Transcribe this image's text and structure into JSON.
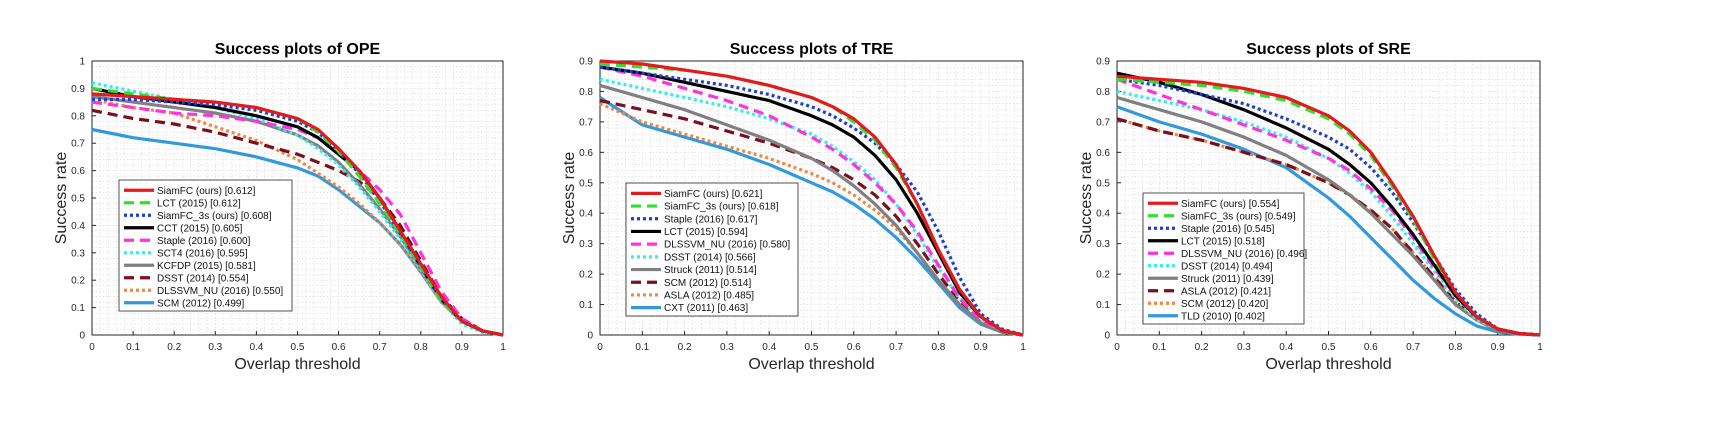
{
  "chart_data": [
    {
      "type": "line",
      "title": "Success plots of OPE",
      "xlabel": "Overlap threshold",
      "ylabel": "Success rate",
      "xlim": [
        0,
        1
      ],
      "ylim": [
        0,
        1
      ],
      "xticks": [
        "0",
        "0.1",
        "0.2",
        "0.3",
        "0.4",
        "0.5",
        "0.6",
        "0.7",
        "0.8",
        "0.9",
        "1"
      ],
      "yticks": [
        "0",
        "0.1",
        "0.2",
        "0.3",
        "0.4",
        "0.5",
        "0.6",
        "0.7",
        "0.8",
        "0.9",
        "1"
      ],
      "grid": true,
      "legend_position": "bottom-left",
      "x": [
        0,
        0.1,
        0.2,
        0.3,
        0.4,
        0.5,
        0.55,
        0.6,
        0.65,
        0.7,
        0.75,
        0.8,
        0.85,
        0.9,
        0.95,
        1
      ],
      "series": [
        {
          "name": "SiamFC (ours) [0.612]",
          "color": "#e41a1c",
          "dash": "solid",
          "values": [
            0.88,
            0.87,
            0.86,
            0.85,
            0.83,
            0.79,
            0.75,
            0.68,
            0.6,
            0.5,
            0.38,
            0.26,
            0.14,
            0.05,
            0.015,
            0
          ]
        },
        {
          "name": "LCT (2015) [0.612]",
          "color": "#33dd33",
          "dash": "dashed",
          "values": [
            0.9,
            0.88,
            0.86,
            0.85,
            0.83,
            0.79,
            0.74,
            0.67,
            0.58,
            0.48,
            0.37,
            0.25,
            0.13,
            0.05,
            0.015,
            0
          ]
        },
        {
          "name": "SiamFC_3s (ours) [0.608]",
          "color": "#1f3fd1",
          "dash": "dotted",
          "values": [
            0.86,
            0.86,
            0.85,
            0.84,
            0.82,
            0.78,
            0.74,
            0.67,
            0.59,
            0.49,
            0.37,
            0.25,
            0.13,
            0.05,
            0.015,
            0
          ]
        },
        {
          "name": "CCT (2015) [0.605]",
          "color": "#000000",
          "dash": "solid",
          "values": [
            0.9,
            0.87,
            0.85,
            0.83,
            0.8,
            0.76,
            0.72,
            0.66,
            0.6,
            0.5,
            0.38,
            0.25,
            0.13,
            0.05,
            0.015,
            0
          ]
        },
        {
          "name": "Staple (2016) [0.600]",
          "color": "#ff33dd",
          "dash": "dashed",
          "values": [
            0.85,
            0.83,
            0.81,
            0.8,
            0.78,
            0.75,
            0.72,
            0.66,
            0.6,
            0.53,
            0.44,
            0.3,
            0.16,
            0.06,
            0.015,
            0
          ]
        },
        {
          "name": "SCT4 (2016) [0.595]",
          "color": "#33eeee",
          "dash": "dotted",
          "values": [
            0.92,
            0.89,
            0.86,
            0.83,
            0.79,
            0.73,
            0.68,
            0.62,
            0.54,
            0.45,
            0.35,
            0.24,
            0.12,
            0.04,
            0.01,
            0
          ]
        },
        {
          "name": "KCFDP (2015) [0.581]",
          "color": "#808080",
          "dash": "solid",
          "values": [
            0.87,
            0.85,
            0.83,
            0.81,
            0.78,
            0.73,
            0.69,
            0.63,
            0.55,
            0.46,
            0.36,
            0.24,
            0.13,
            0.05,
            0.015,
            0
          ]
        },
        {
          "name": "DSST (2014) [0.554]",
          "color": "#7a0f1e",
          "dash": "dashed",
          "values": [
            0.82,
            0.79,
            0.77,
            0.74,
            0.7,
            0.66,
            0.63,
            0.6,
            0.56,
            0.5,
            0.4,
            0.27,
            0.14,
            0.06,
            0.015,
            0
          ]
        },
        {
          "name": "DLSSVM_NU (2016) [0.550]",
          "color": "#ee8844",
          "dash": "dotted",
          "values": [
            0.86,
            0.83,
            0.81,
            0.76,
            0.71,
            0.64,
            0.59,
            0.54,
            0.48,
            0.41,
            0.33,
            0.23,
            0.12,
            0.05,
            0.015,
            0
          ]
        },
        {
          "name": "SCM (2012) [0.499]",
          "color": "#3399dd",
          "dash": "solid",
          "values": [
            0.75,
            0.72,
            0.7,
            0.68,
            0.65,
            0.61,
            0.58,
            0.53,
            0.47,
            0.41,
            0.33,
            0.23,
            0.12,
            0.05,
            0.015,
            0
          ]
        }
      ]
    },
    {
      "type": "line",
      "title": "Success plots of TRE",
      "xlabel": "Overlap threshold",
      "ylabel": "Success rate",
      "xlim": [
        0,
        1
      ],
      "ylim": [
        0,
        0.9
      ],
      "xticks": [
        "0",
        "0.1",
        "0.2",
        "0.3",
        "0.4",
        "0.5",
        "0.6",
        "0.7",
        "0.8",
        "0.9",
        "1"
      ],
      "yticks": [
        "0",
        "0.1",
        "0.2",
        "0.3",
        "0.4",
        "0.5",
        "0.6",
        "0.7",
        "0.8",
        "0.9"
      ],
      "grid": true,
      "legend_position": "bottom-left",
      "x": [
        0,
        0.1,
        0.2,
        0.3,
        0.4,
        0.5,
        0.55,
        0.6,
        0.65,
        0.7,
        0.75,
        0.8,
        0.85,
        0.9,
        0.95,
        1
      ],
      "series": [
        {
          "name": "SiamFC (ours) [0.621]",
          "color": "#e41a1c",
          "dash": "solid",
          "values": [
            0.9,
            0.89,
            0.87,
            0.85,
            0.82,
            0.78,
            0.75,
            0.71,
            0.65,
            0.56,
            0.43,
            0.28,
            0.15,
            0.06,
            0.015,
            0
          ]
        },
        {
          "name": "SiamFC_3s (ours) [0.618]",
          "color": "#33dd33",
          "dash": "dashed",
          "values": [
            0.89,
            0.88,
            0.87,
            0.85,
            0.82,
            0.78,
            0.75,
            0.7,
            0.64,
            0.55,
            0.43,
            0.28,
            0.15,
            0.06,
            0.015,
            0
          ]
        },
        {
          "name": "Staple (2016) [0.617]",
          "color": "#1f3fd1",
          "dash": "dotted",
          "values": [
            0.88,
            0.86,
            0.84,
            0.82,
            0.79,
            0.75,
            0.72,
            0.68,
            0.63,
            0.56,
            0.47,
            0.34,
            0.19,
            0.07,
            0.02,
            0
          ]
        },
        {
          "name": "LCT (2015) [0.594]",
          "color": "#000000",
          "dash": "solid",
          "values": [
            0.88,
            0.86,
            0.83,
            0.8,
            0.77,
            0.72,
            0.69,
            0.65,
            0.59,
            0.51,
            0.4,
            0.27,
            0.14,
            0.06,
            0.015,
            0
          ]
        },
        {
          "name": "DLSSVM_NU (2016) [0.580]",
          "color": "#ff33dd",
          "dash": "dashed",
          "values": [
            0.88,
            0.85,
            0.81,
            0.77,
            0.72,
            0.65,
            0.61,
            0.56,
            0.5,
            0.43,
            0.34,
            0.23,
            0.12,
            0.05,
            0.015,
            0
          ]
        },
        {
          "name": "DSST (2014) [0.566]",
          "color": "#33eeee",
          "dash": "dotted",
          "values": [
            0.84,
            0.81,
            0.78,
            0.75,
            0.71,
            0.66,
            0.62,
            0.57,
            0.51,
            0.43,
            0.33,
            0.22,
            0.12,
            0.05,
            0.015,
            0
          ]
        },
        {
          "name": "Struck (2011) [0.514]",
          "color": "#808080",
          "dash": "solid",
          "values": [
            0.82,
            0.78,
            0.74,
            0.69,
            0.64,
            0.58,
            0.54,
            0.49,
            0.43,
            0.36,
            0.27,
            0.18,
            0.1,
            0.04,
            0.01,
            0
          ]
        },
        {
          "name": "SCM (2012) [0.514]",
          "color": "#7a0f1e",
          "dash": "dashed",
          "values": [
            0.77,
            0.74,
            0.71,
            0.67,
            0.63,
            0.58,
            0.55,
            0.51,
            0.46,
            0.39,
            0.3,
            0.2,
            0.11,
            0.04,
            0.01,
            0
          ]
        },
        {
          "name": "ASLA (2012) [0.485]",
          "color": "#ee8844",
          "dash": "dotted",
          "values": [
            0.76,
            0.7,
            0.66,
            0.62,
            0.58,
            0.53,
            0.5,
            0.46,
            0.41,
            0.35,
            0.27,
            0.18,
            0.1,
            0.04,
            0.01,
            0
          ]
        },
        {
          "name": "CXT (2011) [0.463]",
          "color": "#3399dd",
          "dash": "solid",
          "values": [
            0.78,
            0.69,
            0.65,
            0.61,
            0.56,
            0.5,
            0.47,
            0.43,
            0.38,
            0.32,
            0.25,
            0.17,
            0.09,
            0.035,
            0.01,
            0
          ]
        }
      ]
    },
    {
      "type": "line",
      "title": "Success plots of SRE",
      "xlabel": "Overlap threshold",
      "ylabel": "Success rate",
      "xlim": [
        0,
        1
      ],
      "ylim": [
        0,
        0.9
      ],
      "xticks": [
        "0",
        "0.1",
        "0.2",
        "0.3",
        "0.4",
        "0.5",
        "0.6",
        "0.7",
        "0.8",
        "0.9",
        "1"
      ],
      "yticks": [
        "0",
        "0.1",
        "0.2",
        "0.3",
        "0.4",
        "0.5",
        "0.6",
        "0.7",
        "0.8",
        "0.9"
      ],
      "grid": true,
      "legend_position": "bottom-left",
      "x": [
        0,
        0.1,
        0.2,
        0.3,
        0.4,
        0.5,
        0.55,
        0.6,
        0.65,
        0.7,
        0.75,
        0.8,
        0.85,
        0.9,
        0.95,
        1
      ],
      "series": [
        {
          "name": "SiamFC (ours) [0.554]",
          "color": "#e41a1c",
          "dash": "solid",
          "values": [
            0.85,
            0.84,
            0.83,
            0.81,
            0.78,
            0.72,
            0.67,
            0.6,
            0.5,
            0.39,
            0.26,
            0.14,
            0.06,
            0.02,
            0.005,
            0
          ]
        },
        {
          "name": "SiamFC_3s (ours) [0.549]",
          "color": "#33dd33",
          "dash": "dashed",
          "values": [
            0.84,
            0.83,
            0.82,
            0.8,
            0.77,
            0.71,
            0.66,
            0.59,
            0.49,
            0.38,
            0.25,
            0.14,
            0.06,
            0.02,
            0.005,
            0
          ]
        },
        {
          "name": "Staple (2016) [0.545]",
          "color": "#1f3fd1",
          "dash": "dotted",
          "values": [
            0.84,
            0.82,
            0.79,
            0.76,
            0.71,
            0.65,
            0.61,
            0.55,
            0.47,
            0.37,
            0.26,
            0.15,
            0.07,
            0.02,
            0.005,
            0
          ]
        },
        {
          "name": "LCT (2015) [0.518]",
          "color": "#000000",
          "dash": "solid",
          "values": [
            0.86,
            0.83,
            0.79,
            0.74,
            0.68,
            0.61,
            0.56,
            0.5,
            0.42,
            0.33,
            0.23,
            0.13,
            0.06,
            0.02,
            0.005,
            0
          ]
        },
        {
          "name": "DLSSVM_NU (2016) [0.496]",
          "color": "#ff33dd",
          "dash": "dashed",
          "values": [
            0.84,
            0.79,
            0.74,
            0.69,
            0.64,
            0.58,
            0.54,
            0.48,
            0.41,
            0.32,
            0.22,
            0.13,
            0.06,
            0.02,
            0.005,
            0
          ]
        },
        {
          "name": "DSST (2014) [0.494]",
          "color": "#33eeee",
          "dash": "dotted",
          "values": [
            0.8,
            0.77,
            0.74,
            0.7,
            0.65,
            0.58,
            0.53,
            0.47,
            0.39,
            0.3,
            0.21,
            0.12,
            0.05,
            0.02,
            0.005,
            0
          ]
        },
        {
          "name": "Struck (2011) [0.439]",
          "color": "#808080",
          "dash": "solid",
          "values": [
            0.78,
            0.74,
            0.7,
            0.65,
            0.59,
            0.51,
            0.46,
            0.4,
            0.33,
            0.26,
            0.18,
            0.1,
            0.05,
            0.015,
            0.005,
            0
          ]
        },
        {
          "name": "ASLA (2012) [0.421]",
          "color": "#7a0f1e",
          "dash": "dashed",
          "values": [
            0.71,
            0.67,
            0.64,
            0.6,
            0.56,
            0.5,
            0.46,
            0.41,
            0.35,
            0.27,
            0.19,
            0.11,
            0.05,
            0.015,
            0.005,
            0
          ]
        },
        {
          "name": "SCM (2012) [0.420]",
          "color": "#ee8844",
          "dash": "dotted",
          "values": [
            0.71,
            0.67,
            0.64,
            0.6,
            0.56,
            0.5,
            0.46,
            0.41,
            0.35,
            0.27,
            0.19,
            0.11,
            0.05,
            0.015,
            0.005,
            0
          ]
        },
        {
          "name": "TLD (2010) [0.402]",
          "color": "#3399dd",
          "dash": "solid",
          "values": [
            0.75,
            0.7,
            0.66,
            0.61,
            0.55,
            0.45,
            0.39,
            0.32,
            0.25,
            0.18,
            0.12,
            0.07,
            0.03,
            0.01,
            0.003,
            0
          ]
        }
      ]
    }
  ]
}
